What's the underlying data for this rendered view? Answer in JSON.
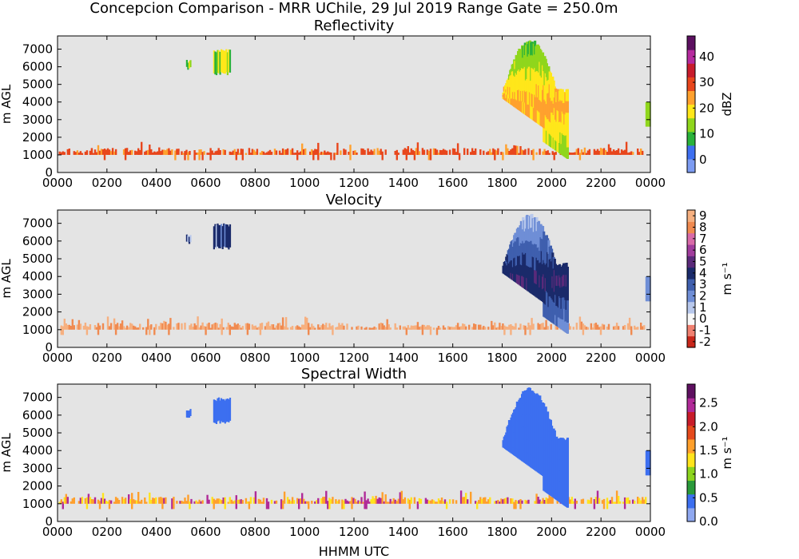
{
  "title": "Concepcion Comparison - MRR UChile, 29 Jul 2019 Range Gate = 250.0m",
  "xlabel": "HHMM UTC",
  "chart_data": [
    {
      "type": "heatmap",
      "title": "Reflectivity",
      "ylabel": "m AGL",
      "xticks": [
        "0000",
        "0200",
        "0400",
        "0600",
        "0800",
        "1000",
        "1200",
        "1400",
        "1600",
        "1800",
        "2000",
        "2200",
        "0000"
      ],
      "yticks": [
        0,
        1000,
        2000,
        3000,
        4000,
        5000,
        6000,
        7000
      ],
      "xlim_hours": [
        0,
        24
      ],
      "ylim": [
        0,
        7750
      ],
      "colorbar": {
        "label": "dBZ",
        "ticks": [
          "0",
          "10",
          "20",
          "30",
          "40"
        ],
        "range": [
          -5,
          48
        ],
        "colors": [
          "#7d9cf2",
          "#3e6ff0",
          "#2ab23a",
          "#8fd61c",
          "#ffe71a",
          "#ffa12e",
          "#e8461c",
          "#c81c2c",
          "#b52a9e",
          "#5c1060"
        ]
      },
      "background": "#e4e4e4"
    },
    {
      "type": "heatmap",
      "title": "Velocity",
      "ylabel": "m s⁻¹",
      "ylabel_left": "m AGL",
      "xticks": [
        "0000",
        "0200",
        "0400",
        "0600",
        "0800",
        "1000",
        "1200",
        "1400",
        "1600",
        "1800",
        "2000",
        "2200",
        "0000"
      ],
      "yticks": [
        0,
        1000,
        2000,
        3000,
        4000,
        5000,
        6000,
        7000
      ],
      "xlim_hours": [
        0,
        24
      ],
      "ylim": [
        0,
        7750
      ],
      "colorbar": {
        "label": "m s⁻¹",
        "ticks": [
          "-2",
          "-1",
          "0",
          "1",
          "2",
          "3",
          "4",
          "5",
          "6",
          "7",
          "8",
          "9"
        ],
        "range": [
          -2.5,
          9.5
        ],
        "colors": [
          "#c8261a",
          "#f08070",
          "#f8f8f8",
          "#b8c8ec",
          "#6f8ed6",
          "#3f5fae",
          "#1a2a6a",
          "#5a2a7a",
          "#a03c9c",
          "#d86aa8",
          "#f08a50",
          "#f6b080"
        ]
      },
      "background": "#e4e4e4"
    },
    {
      "type": "heatmap",
      "title": "Spectral Width",
      "ylabel_left": "m AGL",
      "xticks": [
        "0000",
        "0200",
        "0400",
        "0600",
        "0800",
        "1000",
        "1200",
        "1400",
        "1600",
        "1800",
        "2000",
        "2200",
        "0000"
      ],
      "yticks": [
        0,
        1000,
        2000,
        3000,
        4000,
        5000,
        6000,
        7000
      ],
      "xlim_hours": [
        0,
        24
      ],
      "ylim": [
        0,
        7750
      ],
      "colorbar": {
        "label": "m s⁻¹",
        "ticks": [
          "0.0",
          "0.5",
          "1.0",
          "1.5",
          "2.0",
          "2.5"
        ],
        "range": [
          0,
          2.9
        ],
        "colors": [
          "#8fa8f0",
          "#3c6ff0",
          "#2a9a3a",
          "#8cd41e",
          "#ffe41c",
          "#ffa02c",
          "#e54a1c",
          "#c81c2a",
          "#b02a98",
          "#5e1060"
        ]
      },
      "background": "#e4e4e4"
    }
  ],
  "colorbar_labels": {
    "reflectivity": "dBZ",
    "velocity": "m s⁻¹",
    "spectral_width": "m s⁻¹"
  }
}
